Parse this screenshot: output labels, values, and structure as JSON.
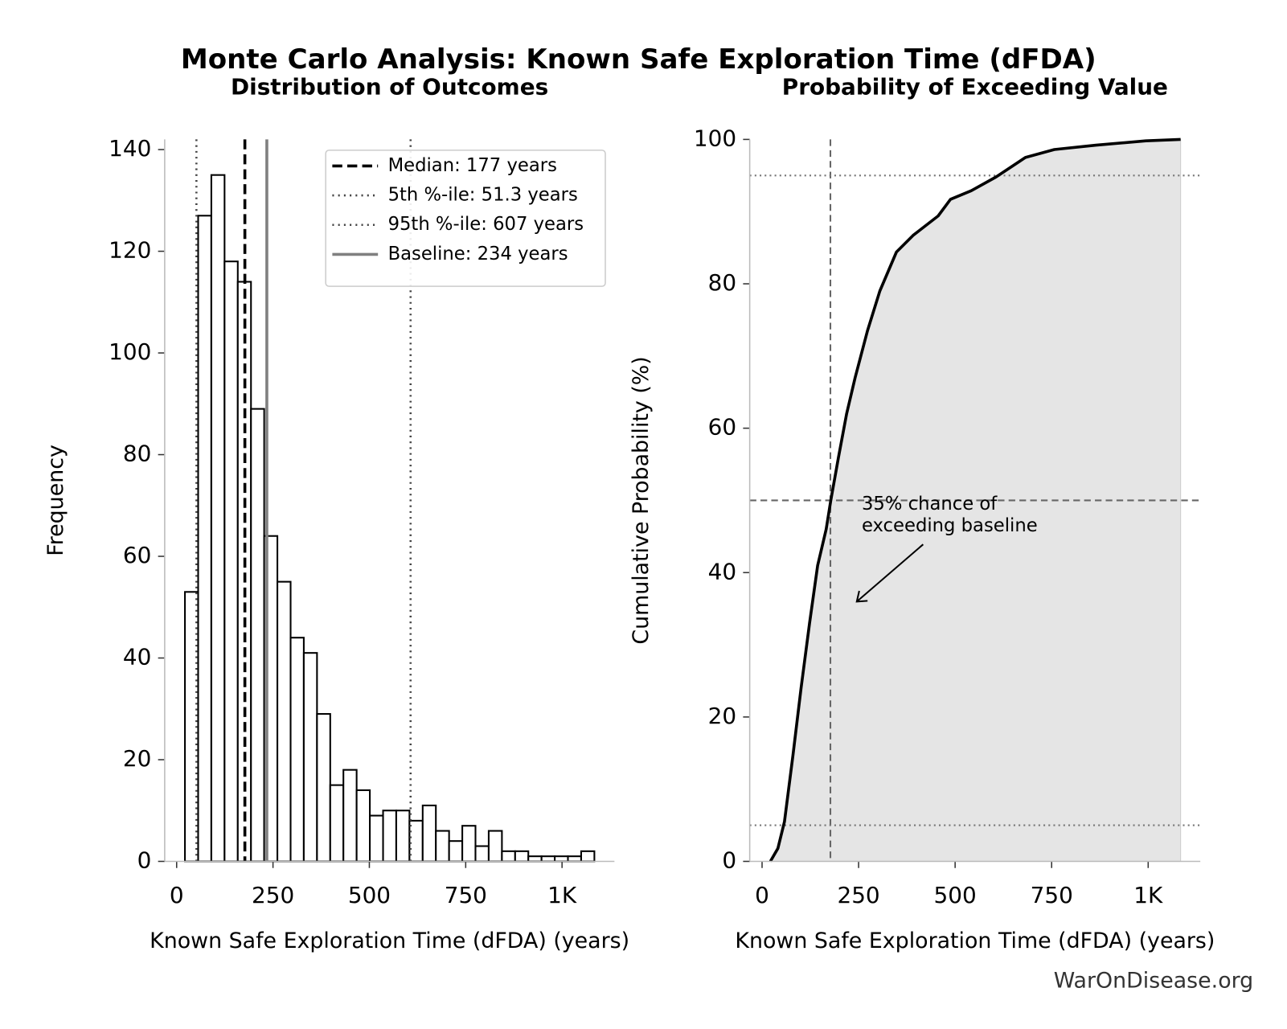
{
  "title": "Monte Carlo Analysis: Known Safe Exploration Time (dFDA)",
  "footer": "WarOnDisease.org",
  "chart_data": [
    {
      "type": "histogram",
      "title": "Distribution of Outcomes",
      "xlabel": "Known Safe Exploration Time (dFDA) (years)",
      "ylabel": "Frequency",
      "bins": [
        21.5,
        55.8,
        90.0,
        124.3,
        158.6,
        192.9,
        227.1,
        261.4,
        295.7,
        329.9,
        364.2,
        398.5,
        432.7,
        467.0,
        501.3,
        535.6,
        569.8,
        604.1,
        638.4,
        672.6,
        706.9,
        741.2,
        775.4,
        809.7,
        844.0,
        878.3,
        912.5,
        946.8,
        981.1,
        1015.3,
        1049.6,
        1083.9
      ],
      "counts": [
        53,
        127,
        135,
        118,
        114,
        89,
        64,
        55,
        44,
        41,
        29,
        15,
        18,
        14,
        9,
        10,
        10,
        8,
        11,
        6,
        4,
        7,
        3,
        6,
        2,
        2,
        1,
        1,
        1,
        1,
        2
      ],
      "color": "#ffffff",
      "edgecolor": "#000000",
      "xlim": [
        -31,
        1136
      ],
      "ylim": [
        0,
        142
      ],
      "xticks": [
        0,
        250,
        500,
        750,
        {
          "value": 1000,
          "label": "1K"
        }
      ],
      "yticks": [
        0,
        20,
        40,
        60,
        80,
        100,
        120,
        140
      ],
      "reference_lines": [
        {
          "name": "Median: 177 years",
          "value": 177,
          "style": "dashed",
          "color": "#000000"
        },
        {
          "name": "5th %-ile: 51.3 years",
          "value": 51.3,
          "style": "dotted",
          "color": "#444444"
        },
        {
          "name": "95th %-ile: 607 years",
          "value": 607,
          "style": "dotted",
          "color": "#444444"
        },
        {
          "name": "Baseline: 234 years",
          "value": 234,
          "style": "solid",
          "color": "#808080"
        }
      ],
      "legend": "upper right"
    },
    {
      "type": "line",
      "title": "Probability of Exceeding Value",
      "xlabel": "Known Safe Exploration Time (dFDA) (years)",
      "ylabel": "Cumulative Probability (%)",
      "x": [
        21.5,
        41,
        58,
        80,
        101,
        123,
        144,
        166,
        178,
        198,
        219,
        241,
        273,
        305,
        348,
        391,
        456,
        488,
        542,
        606,
        682,
        757,
        865,
        994,
        1084
      ],
      "series": [
        {
          "color": "#000000",
          "values": [
            0,
            1.8,
            5.5,
            14.7,
            24,
            33,
            41,
            46,
            50,
            56,
            62,
            67,
            73.5,
            79,
            84.4,
            86.7,
            89.4,
            91.7,
            92.9,
            94.8,
            97.5,
            98.6,
            99.2,
            99.8,
            100
          ]
        }
      ],
      "fill_color": "#e5e5e5",
      "xlim": [
        -32,
        1135
      ],
      "ylim": [
        0,
        100
      ],
      "xticks": [
        0,
        250,
        500,
        750,
        {
          "value": 1000,
          "label": "1K"
        }
      ],
      "yticks": [
        0,
        20,
        40,
        60,
        80,
        100
      ],
      "reference_lines": [
        {
          "orientation": "vertical",
          "value": 177,
          "style": "dashed",
          "color": "#666666"
        },
        {
          "orientation": "horizontal",
          "value": 50,
          "style": "dashed",
          "color": "#666666"
        },
        {
          "orientation": "horizontal",
          "value": 5,
          "style": "dotted",
          "color": "#777777"
        },
        {
          "orientation": "horizontal",
          "value": 95,
          "style": "dotted",
          "color": "#777777"
        }
      ],
      "annotation": [
        "35% chance of",
        "exceeding baseline"
      ]
    }
  ]
}
